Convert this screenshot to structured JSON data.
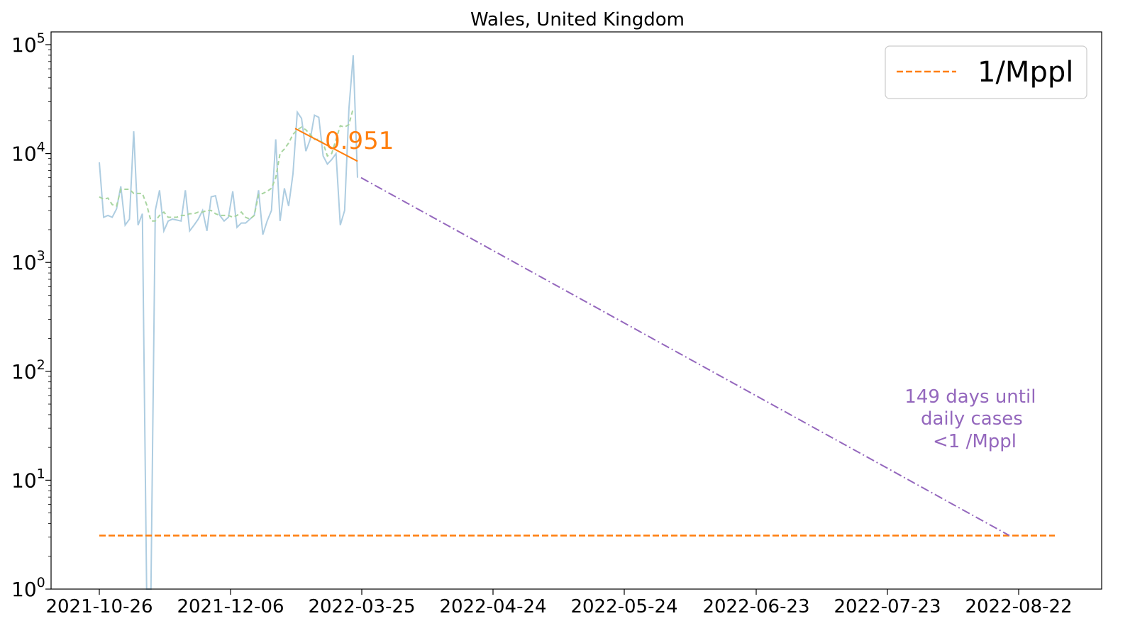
{
  "chart_data": {
    "type": "line",
    "title": "Wales, United Kingdom",
    "xlabel": "",
    "ylabel": "",
    "yscale": "log",
    "ylim": [
      1,
      130000
    ],
    "x_tick_labels": [
      "2021-10-26",
      "2021-12-06",
      "2022-03-25",
      "2022-04-24",
      "2022-05-24",
      "2022-06-23",
      "2022-07-23",
      "2022-08-22"
    ],
    "y_tick_labels": [
      {
        "base": "10",
        "exp": "0",
        "value": 1
      },
      {
        "base": "10",
        "exp": "1",
        "value": 10
      },
      {
        "base": "10",
        "exp": "2",
        "value": 100
      },
      {
        "base": "10",
        "exp": "3",
        "value": 1000
      },
      {
        "base": "10",
        "exp": "4",
        "value": 10000
      },
      {
        "base": "10",
        "exp": "5",
        "value": 100000
      }
    ],
    "series": [
      {
        "color": "#aecde1",
        "style": "solid",
        "values": [
          8300,
          2600,
          2700,
          2600,
          3100,
          5000,
          2200,
          2500,
          16000,
          2200,
          2800,
          0.9,
          0.9,
          3000,
          4600,
          1950,
          2400,
          2500,
          2450,
          2400,
          4600,
          1950,
          2200,
          2500,
          3000,
          1950,
          4000,
          4100,
          2700,
          2400,
          2600,
          4500,
          2100,
          2300,
          2300,
          2500,
          2700,
          4600,
          1800,
          2400,
          3000,
          13500,
          2400,
          4800,
          3300,
          6500,
          24000,
          21000,
          10500,
          13500,
          22500,
          21500,
          9500,
          8000,
          8800,
          10000,
          2200,
          3000,
          26000,
          80000,
          6000
        ]
      },
      {
        "color": "#a8d5a0",
        "style": "dashed",
        "values": [
          4000,
          3800,
          3900,
          3400,
          3300,
          4700,
          4700,
          4700,
          4300,
          4300,
          4300,
          3400,
          2400,
          2400,
          2700,
          2900,
          2600,
          2600,
          2600,
          2700,
          2700,
          2800,
          2800,
          2900,
          2900,
          3000,
          3000,
          2800,
          2700,
          2700,
          2700,
          2600,
          2700,
          2900,
          2600,
          2500,
          2700,
          4200,
          4300,
          4500,
          4800,
          6000,
          10000,
          11000,
          12500,
          15000,
          16500,
          17500,
          16500,
          15000,
          13500,
          13500,
          12500,
          9500,
          10000,
          13500,
          18000,
          17500,
          18500,
          26000
        ]
      }
    ],
    "fit_line": {
      "color": "#ff7f0e",
      "start": 17000,
      "end": 8500,
      "label": "0.951"
    },
    "projection": {
      "color": "#9467bd",
      "start": 6000,
      "end": 3.1
    },
    "threshold": {
      "value": 3.1,
      "color": "#ff7f0e",
      "name": "1/Mppl"
    },
    "annotation": {
      "lines": [
        "149 days until",
        "daily cases",
        "<1 /Mppl"
      ],
      "color": "#9467bd"
    },
    "legend": {
      "position": "top-right",
      "entries": [
        {
          "label": "1/Mppl",
          "color": "#ff7f0e",
          "style": "dashed"
        }
      ]
    },
    "grid": false
  }
}
